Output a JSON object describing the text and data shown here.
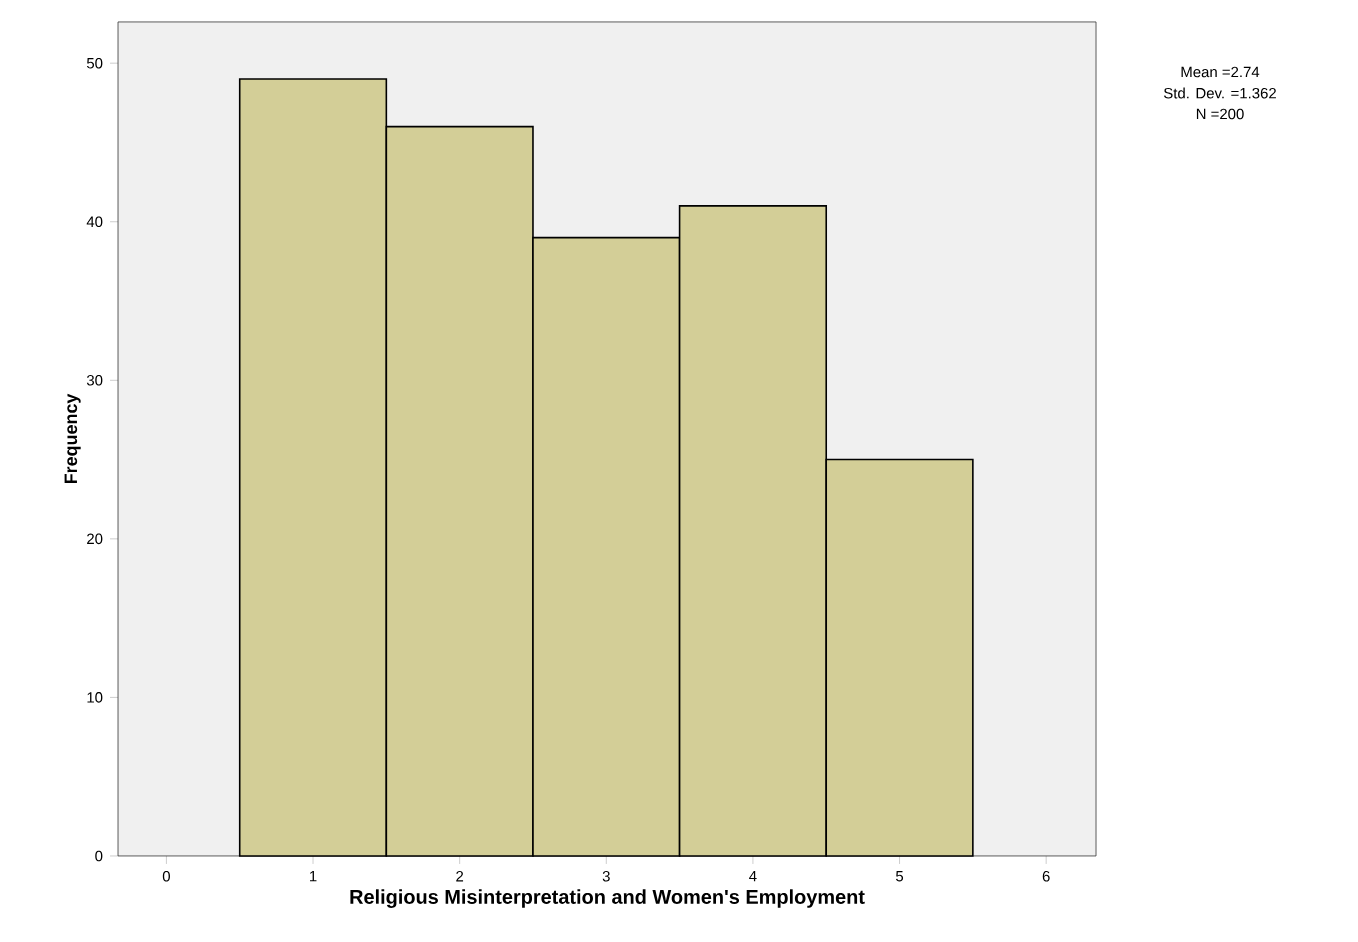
{
  "chart_data": {
    "type": "histogram",
    "xlabel": "Religious Misinterpretation and Women's Employment",
    "ylabel": "Frequency",
    "bins": [
      0.5,
      1.5,
      2.5,
      3.5,
      4.5,
      5.5
    ],
    "values": [
      49,
      46,
      39,
      41,
      25
    ],
    "color": "#d3ce97",
    "xlim": [
      -0.33,
      6.34
    ],
    "ylim": [
      0,
      52.6
    ],
    "xticks": [
      0,
      1,
      2,
      3,
      4,
      5,
      6
    ],
    "yticks": [
      0,
      10,
      20,
      30,
      40,
      50
    ],
    "grid": false,
    "annotations": [
      "Mean =2.74",
      "Std. Dev. =1.362",
      "N =200"
    ]
  }
}
